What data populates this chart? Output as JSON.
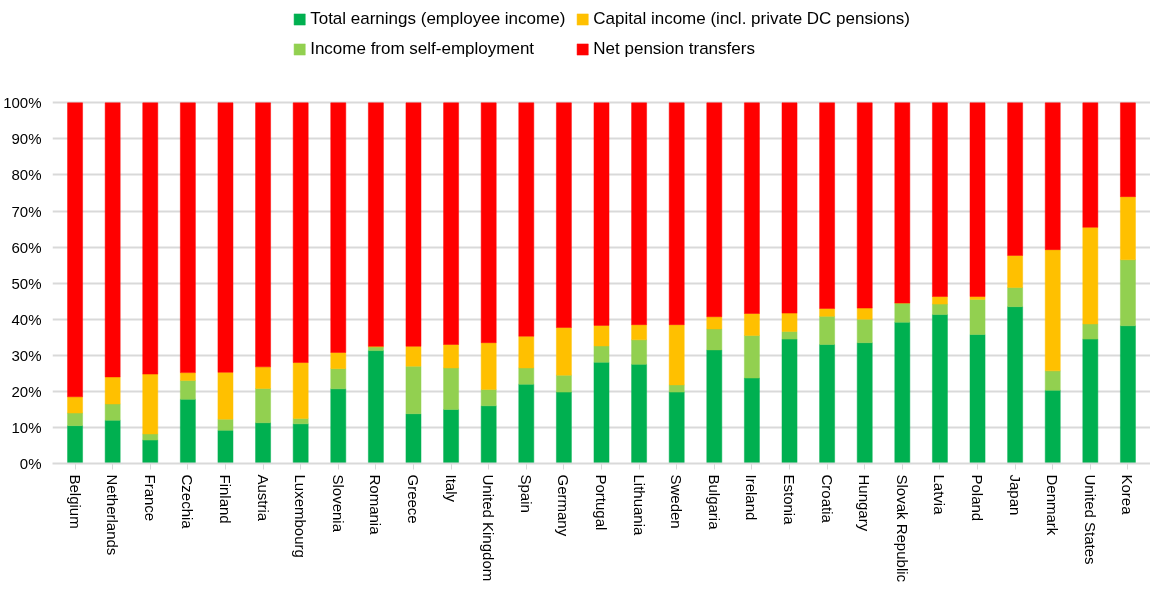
{
  "chart_data": {
    "type": "bar",
    "stacked": true,
    "legend": "top",
    "grid": "y",
    "categories": [
      "Belgium",
      "Netherlands",
      "France",
      "Czechia",
      "Finland",
      "Austria",
      "Luxembourg",
      "Slovenia",
      "Romania",
      "Greece",
      "Italy",
      "United Kingdom",
      "Spain",
      "Germany",
      "Portugal",
      "Lithuania",
      "Sweden",
      "Bulgaria",
      "Ireland",
      "Estonia",
      "Croatia",
      "Hungary",
      "Slovak Republic",
      "Latvia",
      "Poland",
      "Japan",
      "Denmark",
      "United States",
      "Korea"
    ],
    "series": [
      {
        "name": "Total earnings (employee income)",
        "color": "#00b050",
        "values": [
          10.5,
          12,
          6.5,
          17.8,
          9.2,
          11.3,
          11,
          20.7,
          31.3,
          13.8,
          15,
          16,
          22,
          19.8,
          28.1,
          27.5,
          19.8,
          31.5,
          23.7,
          34.5,
          33,
          33.5,
          39.2,
          41.3,
          35.8,
          43.5,
          20.3,
          34.5,
          38.2
        ]
      },
      {
        "name": "Income from self-employment",
        "color": "#92d050",
        "values": [
          3.5,
          4.5,
          1.7,
          5.2,
          3.1,
          9.5,
          1.5,
          5.6,
          1,
          13.2,
          11.5,
          4.5,
          4.5,
          4.7,
          4.5,
          6.8,
          2,
          5.8,
          11.8,
          2.1,
          7.8,
          6.5,
          5.3,
          2.9,
          9.7,
          5.3,
          5.4,
          4.2,
          18.3
        ]
      },
      {
        "name": "Capital income (incl. private DC pensions)",
        "color": "#ffc000",
        "values": [
          4.5,
          7.5,
          16.6,
          2.2,
          13,
          6,
          15.5,
          4.5,
          0.2,
          5.5,
          6.5,
          13,
          8.8,
          13.2,
          5.7,
          4.2,
          16.7,
          3.4,
          6.1,
          5.1,
          2.2,
          3.1,
          0,
          2.1,
          0.8,
          8.9,
          33.6,
          26.8,
          17.5
        ]
      },
      {
        "name": "Net pension transfers",
        "color": "#ff0000",
        "values": [
          81.5,
          76,
          75.2,
          74.8,
          74.7,
          73.2,
          72,
          69.2,
          67.5,
          67.5,
          67,
          66.5,
          64.7,
          62.3,
          61.7,
          61.5,
          61.5,
          59.3,
          58.4,
          58.3,
          57,
          56.9,
          55.5,
          53.7,
          53.7,
          42.3,
          40.7,
          34.5,
          26
        ]
      }
    ],
    "ylim": [
      0,
      100
    ],
    "yticks": [
      {
        "value": 0,
        "label": "0%"
      },
      {
        "value": 10,
        "label": "10%"
      },
      {
        "value": 20,
        "label": "20%"
      },
      {
        "value": 30,
        "label": "30%"
      },
      {
        "value": 40,
        "label": "40%"
      },
      {
        "value": 50,
        "label": "50%"
      },
      {
        "value": 60,
        "label": "60%"
      },
      {
        "value": 70,
        "label": "70%"
      },
      {
        "value": 80,
        "label": "80%"
      },
      {
        "value": 90,
        "label": "90%"
      },
      {
        "value": 100,
        "label": "100%"
      }
    ]
  }
}
